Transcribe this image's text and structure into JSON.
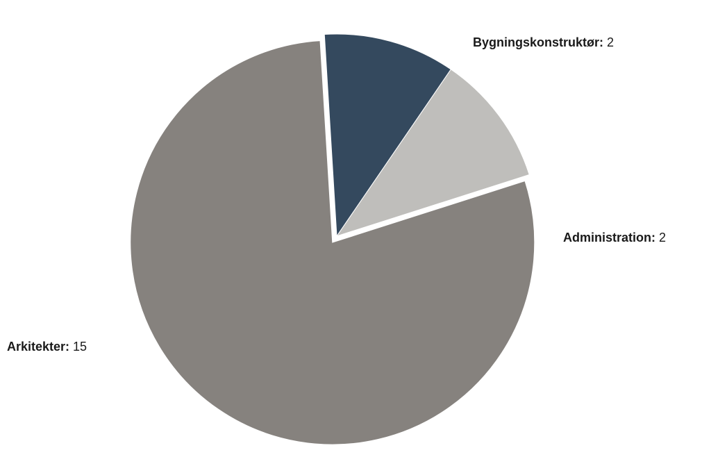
{
  "chart_data": {
    "type": "pie",
    "categories": [
      "Bygningskonstruktør",
      "Administration",
      "Arkitekter"
    ],
    "values": [
      2,
      2,
      15
    ],
    "colors": [
      "#34495e",
      "#bfbebb",
      "#86827e"
    ],
    "exploded": [
      false,
      false,
      true
    ],
    "title": "",
    "label_format": "category: value",
    "legend": "none"
  }
}
